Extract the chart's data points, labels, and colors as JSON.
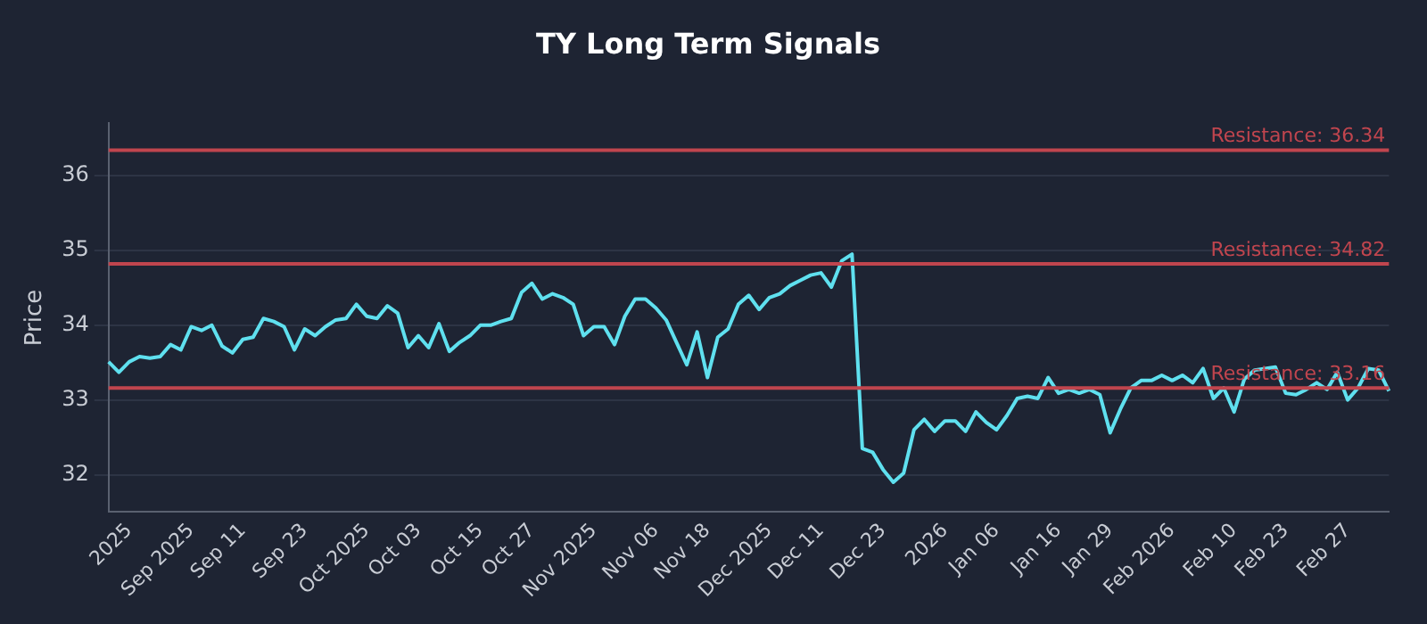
{
  "chart_data": {
    "type": "line",
    "title": "TY Long Term Signals",
    "ylabel": "Price",
    "categories": [
      null,
      null,
      "2025",
      null,
      null,
      null,
      null,
      null,
      "Sep 2025",
      null,
      null,
      null,
      null,
      "Sep 11",
      null,
      null,
      null,
      null,
      null,
      "Sep 23",
      null,
      null,
      null,
      null,
      null,
      "Oct 2025",
      null,
      null,
      null,
      null,
      "Oct 03",
      null,
      null,
      null,
      null,
      null,
      "Oct 15",
      null,
      null,
      null,
      null,
      "Oct 27",
      null,
      null,
      null,
      null,
      null,
      "Nov 2025",
      null,
      null,
      null,
      null,
      null,
      "Nov 06",
      null,
      null,
      null,
      null,
      "Nov 18",
      null,
      null,
      null,
      null,
      null,
      "Dec 2025",
      null,
      null,
      null,
      null,
      "Dec 11",
      null,
      null,
      null,
      null,
      null,
      "Dec 23",
      null,
      null,
      null,
      null,
      null,
      "2026",
      null,
      null,
      null,
      null,
      "Jan 06",
      null,
      null,
      null,
      null,
      null,
      "Jan 16",
      null,
      null,
      null,
      null,
      "Jan 29",
      null,
      null,
      null,
      null,
      null,
      "Feb 2026",
      null,
      null,
      null,
      null,
      null,
      "Feb 10",
      null,
      null,
      null,
      null,
      "Feb 23",
      null,
      null,
      null,
      null,
      null,
      "Feb 27",
      null,
      null,
      null,
      null
    ],
    "series": [
      {
        "color": "#5fe0ef",
        "values": [
          33.51,
          33.37,
          33.51,
          33.58,
          33.56,
          33.58,
          33.74,
          33.67,
          33.98,
          33.93,
          34.0,
          33.72,
          33.63,
          33.81,
          33.84,
          34.09,
          34.05,
          33.98,
          33.67,
          33.95,
          33.86,
          33.98,
          34.07,
          34.09,
          34.28,
          34.12,
          34.09,
          34.26,
          34.16,
          33.7,
          33.86,
          33.7,
          34.02,
          33.65,
          33.77,
          33.86,
          34.0,
          34.0,
          34.05,
          34.09,
          34.44,
          34.56,
          34.35,
          34.42,
          34.37,
          34.28,
          33.86,
          33.98,
          33.98,
          33.74,
          34.12,
          34.35,
          34.35,
          34.23,
          34.07,
          33.77,
          33.47,
          33.91,
          33.3,
          33.84,
          33.95,
          34.28,
          34.4,
          34.21,
          34.37,
          34.42,
          34.53,
          34.6,
          34.67,
          34.7,
          34.51,
          34.86,
          34.95,
          32.35,
          32.3,
          32.07,
          31.9,
          32.02,
          32.6,
          32.74,
          32.58,
          32.72,
          32.72,
          32.58,
          32.84,
          32.7,
          32.6,
          32.79,
          33.02,
          33.05,
          33.02,
          33.3,
          33.09,
          33.14,
          33.09,
          33.14,
          33.07,
          32.56,
          32.88,
          33.16,
          33.26,
          33.26,
          33.33,
          33.26,
          33.33,
          33.23,
          33.42,
          33.02,
          33.16,
          32.84,
          33.28,
          33.4,
          33.42,
          33.44,
          33.09,
          33.07,
          33.14,
          33.23,
          33.14,
          33.37,
          33.0,
          33.16,
          33.42,
          33.4,
          33.12
        ]
      }
    ],
    "ylim": [
      31.5,
      36.7
    ],
    "yticks": [
      32,
      33,
      34,
      35,
      36
    ],
    "grid": "y",
    "legend": false,
    "marker": "none",
    "line_style": "solid",
    "ref_lines": [
      {
        "axis": "y",
        "value": 36.34,
        "label": "Resistance: 36.34",
        "color": "#c0454e"
      },
      {
        "axis": "y",
        "value": 34.82,
        "label": "Resistance: 34.82",
        "color": "#c0454e"
      },
      {
        "axis": "y",
        "value": 33.16,
        "label": "Resistance: 33.16",
        "color": "#c0454e"
      }
    ]
  }
}
